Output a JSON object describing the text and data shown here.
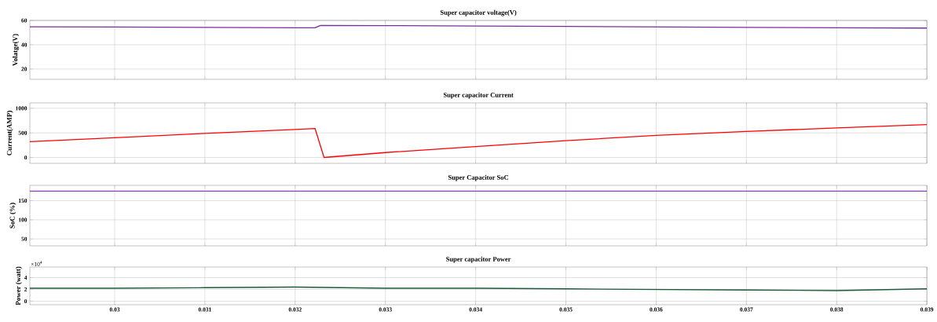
{
  "chart_data": [
    {
      "type": "line",
      "title": "Super capacitor voltage(V)",
      "ylabel": "Volatge(V)",
      "xlim": [
        0.02906,
        0.039
      ],
      "ylim": [
        11.5,
        60
      ],
      "xticks": [
        0.03,
        0.031,
        0.032,
        0.033,
        0.034,
        0.035,
        0.036,
        0.037,
        0.038,
        0.039
      ],
      "yticks": [
        20,
        40,
        60
      ],
      "grid": true,
      "tick_labels": "y",
      "x": [
        0.02906,
        0.03,
        0.031,
        0.032,
        0.03222,
        0.03228,
        0.033,
        0.034,
        0.035,
        0.036,
        0.037,
        0.038,
        0.039
      ],
      "series": [
        {
          "color": "#7b2d9b",
          "values": [
            54.8,
            54.6,
            54.3,
            54.0,
            53.9,
            55.9,
            55.7,
            55.4,
            55.1,
            54.7,
            54.3,
            54.0,
            53.7
          ]
        }
      ]
    },
    {
      "type": "line",
      "title": "Super capacitor Current",
      "ylabel": "Current(AMP)",
      "xlim": [
        0.02906,
        0.039
      ],
      "ylim": [
        -120,
        1110
      ],
      "xticks": [
        0.03,
        0.031,
        0.032,
        0.033,
        0.034,
        0.035,
        0.036,
        0.037,
        0.038,
        0.039
      ],
      "yticks": [
        0,
        500,
        1000
      ],
      "grid": true,
      "tick_labels": "y",
      "x": [
        0.02906,
        0.03,
        0.031,
        0.032,
        0.03222,
        0.03232,
        0.033,
        0.034,
        0.035,
        0.036,
        0.037,
        0.038,
        0.039
      ],
      "series": [
        {
          "color": "#ff0000",
          "values": [
            320,
            400,
            490,
            570,
            590,
            0,
            100,
            220,
            340,
            450,
            530,
            600,
            670
          ]
        }
      ]
    },
    {
      "type": "line",
      "title": "Super Capacitor SoC",
      "ylabel": "SoC (%)",
      "xlim": [
        0.02906,
        0.039
      ],
      "ylim": [
        32,
        190
      ],
      "xticks": [
        0.03,
        0.031,
        0.032,
        0.033,
        0.034,
        0.035,
        0.036,
        0.037,
        0.038,
        0.039
      ],
      "yticks": [
        50,
        100,
        150
      ],
      "grid": true,
      "tick_labels": "y",
      "x": [
        0.02906,
        0.039
      ],
      "series": [
        {
          "color": "#8e3fb0",
          "values": [
            175,
            175
          ]
        }
      ]
    },
    {
      "type": "line",
      "title": "Super capacitor Power",
      "ylabel": "Power (watt)",
      "xlim": [
        0.02906,
        0.039
      ],
      "ylim": [
        -0.6,
        5.8
      ],
      "xticks": [
        0.03,
        0.031,
        0.032,
        0.033,
        0.034,
        0.035,
        0.036,
        0.037,
        0.038,
        0.039
      ],
      "yticks": [
        0,
        2,
        4
      ],
      "grid": true,
      "annotations": [
        "×10$^{4}$"
      ],
      "x": [
        0.02906,
        0.03,
        0.031,
        0.032,
        0.033,
        0.034,
        0.035,
        0.036,
        0.037,
        0.038,
        0.039
      ],
      "series": [
        {
          "color": "#1a5c3a",
          "values": [
            2.2,
            2.2,
            2.3,
            2.4,
            2.2,
            2.2,
            2.1,
            2.0,
            1.9,
            1.8,
            2.1
          ]
        }
      ]
    }
  ]
}
